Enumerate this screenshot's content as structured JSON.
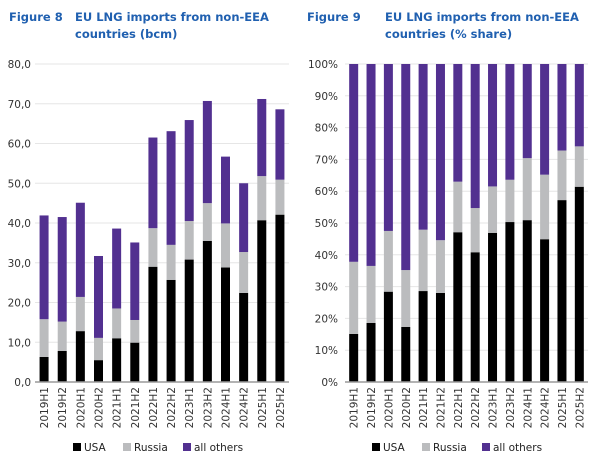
{
  "colors": {
    "title": "#2060b0",
    "USA": "#000000",
    "Russia": "#bbbcbe",
    "all others": "#523090",
    "grid": "#e6e6e6",
    "axis": "#9a9a9a"
  },
  "chart_data": [
    {
      "type": "bar",
      "stacked": true,
      "figure_label": "Figure 8",
      "title": "EU LNG imports from non-EEA countries (bcm)",
      "categories": [
        "2019H1",
        "2019H2",
        "2020H1",
        "2020H2",
        "2021H1",
        "2021H2",
        "2022H1",
        "2022H2",
        "2023H1",
        "2023H2",
        "2024H1",
        "2024H2",
        "2025H1",
        "2025H2"
      ],
      "series": [
        {
          "name": "USA",
          "values": [
            6.3,
            7.8,
            12.8,
            5.5,
            11.0,
            9.9,
            29.0,
            25.7,
            30.8,
            35.5,
            28.8,
            22.4,
            40.7,
            42.1
          ]
        },
        {
          "name": "Russia",
          "values": [
            9.5,
            7.4,
            8.6,
            5.6,
            7.5,
            5.7,
            9.7,
            8.8,
            9.7,
            9.5,
            11.1,
            10.3,
            11.1,
            8.8
          ]
        },
        {
          "name": "all others",
          "values": [
            26.1,
            26.3,
            23.7,
            20.6,
            20.1,
            19.5,
            22.8,
            28.6,
            25.4,
            25.7,
            16.8,
            17.3,
            19.4,
            17.7
          ]
        }
      ],
      "ylim": [
        0,
        80
      ],
      "yticks": [
        "0,0",
        "10,0",
        "20,0",
        "30,0",
        "40,0",
        "50,0",
        "60,0",
        "70,0",
        "80,0"
      ],
      "grid": true,
      "legend": "bottom"
    },
    {
      "type": "bar",
      "stacked": true,
      "figure_label": "Figure 9",
      "title": "EU LNG imports from non-EEA countries (% share)",
      "categories": [
        "2019H1",
        "2019H2",
        "2020H1",
        "2020H2",
        "2021H1",
        "2021H2",
        "2022H1",
        "2022H2",
        "2023H1",
        "2023H2",
        "2024H1",
        "2024H2",
        "2025H1",
        "2025H2"
      ],
      "series": [
        {
          "name": "USA",
          "values": [
            15.1,
            18.6,
            28.4,
            17.3,
            28.6,
            28.0,
            47.1,
            40.8,
            46.9,
            50.3,
            50.9,
            44.9,
            57.2,
            61.4
          ]
        },
        {
          "name": "Russia",
          "values": [
            22.7,
            17.9,
            19.1,
            17.9,
            19.3,
            16.6,
            15.9,
            13.9,
            14.6,
            13.3,
            19.5,
            20.3,
            15.6,
            12.7
          ]
        },
        {
          "name": "all others",
          "values": [
            62.2,
            63.5,
            52.5,
            64.8,
            52.1,
            55.4,
            37.0,
            45.3,
            38.5,
            36.4,
            29.6,
            34.8,
            27.2,
            25.9
          ]
        }
      ],
      "ylim": [
        0,
        100
      ],
      "yticks": [
        "0%",
        "10%",
        "20%",
        "30%",
        "40%",
        "50%",
        "60%",
        "70%",
        "80%",
        "90%",
        "100%"
      ],
      "grid": true,
      "legend": "bottom"
    }
  ]
}
